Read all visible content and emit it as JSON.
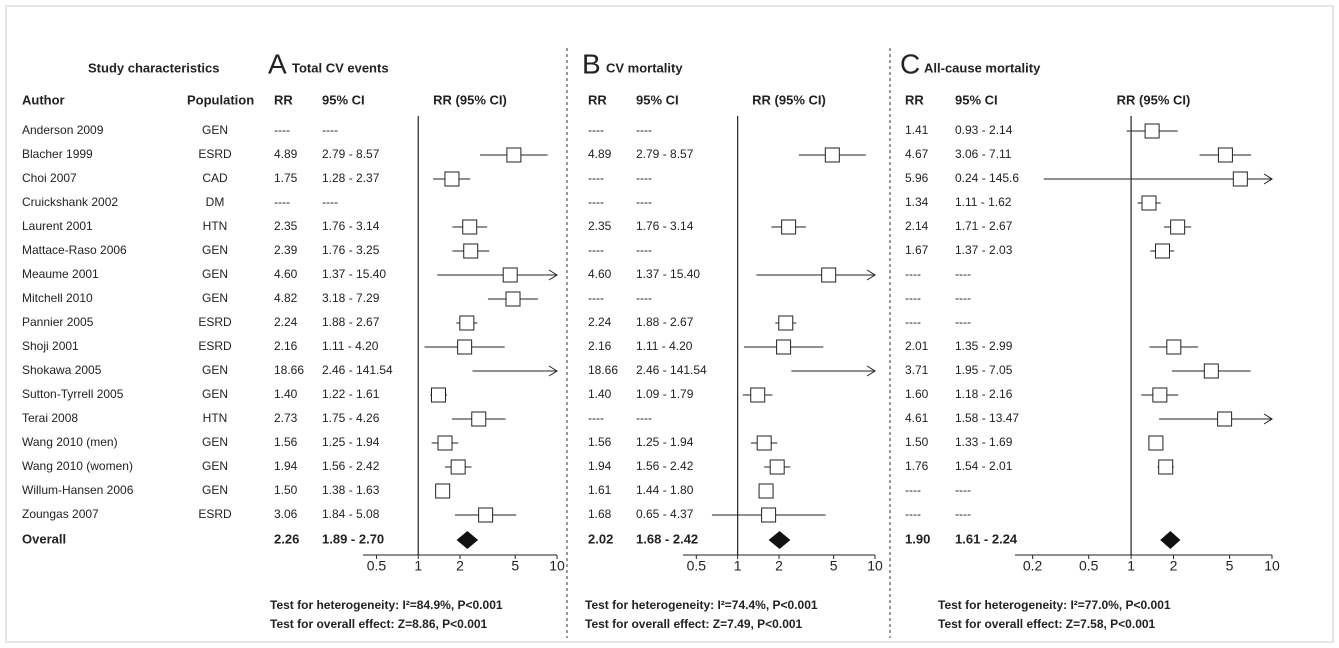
{
  "studies": {
    "header": "Study characteristics",
    "author_label": "Author",
    "population_label": "Population",
    "overall_label": "Overall",
    "authors": [
      "Anderson 2009",
      "Blacher 1999",
      "Choi 2007",
      "Cruickshank 2002",
      "Laurent 2001",
      "Mattace-Raso 2006",
      "Meaume 2001",
      "Mitchell 2010",
      "Pannier 2005",
      "Shoji 2001",
      "Shokawa 2005",
      "Sutton-Tyrrell 2005",
      "Terai 2008",
      "Wang 2010 (men)",
      "Wang 2010 (women)",
      "Willum-Hansen 2006",
      "Zoungas 2007"
    ],
    "populations": [
      "GEN",
      "ESRD",
      "CAD",
      "DM",
      "HTN",
      "GEN",
      "GEN",
      "GEN",
      "ESRD",
      "ESRD",
      "GEN",
      "GEN",
      "HTN",
      "GEN",
      "GEN",
      "GEN",
      "ESRD"
    ]
  },
  "chart_data": [
    {
      "type": "forest",
      "letter": "A",
      "title": "Total CV events",
      "rr_label": "RR",
      "ci_header": "95% CI",
      "plot_header": "RR (95% CI)",
      "values": [
        null,
        4.89,
        1.75,
        null,
        2.35,
        2.39,
        4.6,
        4.82,
        2.24,
        2.16,
        18.66,
        1.4,
        2.73,
        1.56,
        1.94,
        1.5,
        3.06
      ],
      "value_labels": [
        "----",
        "4.89",
        "1.75",
        "----",
        "2.35",
        "2.39",
        "4.60",
        "4.82",
        "2.24",
        "2.16",
        "18.66",
        "1.40",
        "2.73",
        "1.56",
        "1.94",
        "1.50",
        "3.06"
      ],
      "ci": [
        null,
        [
          2.79,
          8.57
        ],
        [
          1.28,
          2.37
        ],
        null,
        [
          1.76,
          3.14
        ],
        [
          1.76,
          3.25
        ],
        [
          1.37,
          15.4
        ],
        [
          3.18,
          7.29
        ],
        [
          1.88,
          2.67
        ],
        [
          1.11,
          4.2
        ],
        [
          2.46,
          141.54
        ],
        [
          1.22,
          1.61
        ],
        [
          1.75,
          4.26
        ],
        [
          1.25,
          1.94
        ],
        [
          1.56,
          2.42
        ],
        [
          1.38,
          1.63
        ],
        [
          1.84,
          5.08
        ]
      ],
      "ci_labels": [
        "----",
        "2.79 - 8.57",
        "1.28 - 2.37",
        "----",
        "1.76 - 3.14",
        "1.76 - 3.25",
        "1.37 - 15.40",
        "3.18 - 7.29",
        "1.88 - 2.67",
        "1.11 - 4.20",
        "2.46 - 141.54",
        "1.22 - 1.61",
        "1.75 - 4.26",
        "1.25 - 1.94",
        "1.56 - 2.42",
        "1.38 - 1.63",
        "1.84 - 5.08"
      ],
      "overall": {
        "value": 2.26,
        "value_label": "2.26",
        "ci": [
          1.89,
          2.7
        ],
        "ci_label": "1.89 - 2.70"
      },
      "log_x": true,
      "xlim": [
        0.4,
        10
      ],
      "xticks": [
        0.5,
        1,
        2,
        5,
        10
      ],
      "notes": [
        "Test for heterogeneity: I²=84.9%, P<0.001",
        "Test for overall effect: Z=8.86, P<0.001"
      ]
    },
    {
      "type": "forest",
      "letter": "B",
      "title": "CV mortality",
      "rr_label": "RR",
      "ci_header": "95% CI",
      "plot_header": "RR (95% CI)",
      "values": [
        null,
        4.89,
        null,
        null,
        2.35,
        null,
        4.6,
        null,
        2.24,
        2.16,
        18.66,
        1.4,
        null,
        1.56,
        1.94,
        1.61,
        1.68
      ],
      "value_labels": [
        "----",
        "4.89",
        "----",
        "----",
        "2.35",
        "----",
        "4.60",
        "----",
        "2.24",
        "2.16",
        "18.66",
        "1.40",
        "----",
        "1.56",
        "1.94",
        "1.61",
        "1.68"
      ],
      "ci": [
        null,
        [
          2.79,
          8.57
        ],
        null,
        null,
        [
          1.76,
          3.14
        ],
        null,
        [
          1.37,
          15.4
        ],
        null,
        [
          1.88,
          2.67
        ],
        [
          1.11,
          4.2
        ],
        [
          2.46,
          141.54
        ],
        [
          1.09,
          1.79
        ],
        null,
        [
          1.25,
          1.94
        ],
        [
          1.56,
          2.42
        ],
        [
          1.44,
          1.8
        ],
        [
          0.65,
          4.37
        ]
      ],
      "ci_labels": [
        "----",
        "2.79 - 8.57",
        "----",
        "----",
        "1.76 - 3.14",
        "----",
        "1.37 - 15.40",
        "----",
        "1.88 - 2.67",
        "1.11 - 4.20",
        "2.46 - 141.54",
        "1.09 - 1.79",
        "----",
        "1.25 - 1.94",
        "1.56 - 2.42",
        "1.44 - 1.80",
        "0.65 - 4.37"
      ],
      "overall": {
        "value": 2.02,
        "value_label": "2.02",
        "ci": [
          1.68,
          2.42
        ],
        "ci_label": "1.68 - 2.42"
      },
      "log_x": true,
      "xlim": [
        0.4,
        10
      ],
      "xticks": [
        0.5,
        1,
        2,
        5,
        10
      ],
      "notes": [
        "Test for heterogeneity: I²=74.4%, P<0.001",
        "Test for overall effect: Z=7.49, P<0.001"
      ]
    },
    {
      "type": "forest",
      "letter": "C",
      "title": "All-cause mortality",
      "rr_label": "RR",
      "ci_header": "95% CI",
      "plot_header": "RR (95% CI)",
      "values": [
        1.41,
        4.67,
        5.96,
        1.34,
        2.14,
        1.67,
        null,
        null,
        null,
        2.01,
        3.71,
        1.6,
        4.61,
        1.5,
        1.76,
        null,
        null
      ],
      "value_labels": [
        "1.41",
        "4.67",
        "5.96",
        "1.34",
        "2.14",
        "1.67",
        "----",
        "----",
        "----",
        "2.01",
        "3.71",
        "1.60",
        "4.61",
        "1.50",
        "1.76",
        "----",
        "----"
      ],
      "ci": [
        [
          0.93,
          2.14
        ],
        [
          3.06,
          7.11
        ],
        [
          0.24,
          145.6
        ],
        [
          1.11,
          1.62
        ],
        [
          1.71,
          2.67
        ],
        [
          1.37,
          2.03
        ],
        null,
        null,
        null,
        [
          1.35,
          2.99
        ],
        [
          1.95,
          7.05
        ],
        [
          1.18,
          2.16
        ],
        [
          1.58,
          13.47
        ],
        [
          1.33,
          1.69
        ],
        [
          1.54,
          2.01
        ],
        null,
        null
      ],
      "ci_labels": [
        "0.93 - 2.14",
        "3.06 - 7.11",
        "0.24 - 145.6",
        "1.11 - 1.62",
        "1.71 - 2.67",
        "1.37 - 2.03",
        "----",
        "----",
        "----",
        "1.35 - 2.99",
        "1.95 - 7.05",
        "1.18 - 2.16",
        "1.58 - 13.47",
        "1.33 - 1.69",
        "1.54 - 2.01",
        "----",
        "----"
      ],
      "overall": {
        "value": 1.9,
        "value_label": "1.90",
        "ci": [
          1.61,
          2.24
        ],
        "ci_label": "1.61 - 2.24"
      },
      "log_x": true,
      "xlim": [
        0.15,
        10
      ],
      "xticks": [
        0.2,
        0.5,
        1,
        2,
        5,
        10
      ],
      "notes": [
        "Test for heterogeneity: I²=77.0%, P<0.001",
        "Test for overall effect: Z=7.58, P<0.001"
      ]
    }
  ]
}
